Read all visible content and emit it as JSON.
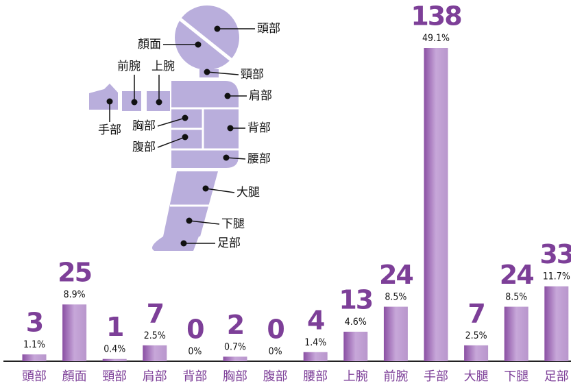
{
  "chart_data": {
    "type": "bar",
    "categories": [
      "頭部",
      "顏面",
      "頸部",
      "肩部",
      "背部",
      "胸部",
      "腹部",
      "腰部",
      "上腕",
      "前腕",
      "手部",
      "大腿",
      "下腿",
      "足部"
    ],
    "values": [
      3,
      25,
      1,
      7,
      0,
      2,
      0,
      4,
      13,
      24,
      138,
      7,
      24,
      33
    ],
    "percent_labels": [
      "1.1%",
      "8.9%",
      "0.4%",
      "2.5%",
      "0%",
      "0.7%",
      "0%",
      "1.4%",
      "4.6%",
      "8.5%",
      "49.1%",
      "2.5%",
      "8.5%",
      "11.7%"
    ],
    "color": "#9a5fb2",
    "diagram_labels": [
      "頭部",
      "顏面",
      "頸部",
      "前腕",
      "上腕",
      "肩部",
      "手部",
      "胸部",
      "背部",
      "腹部",
      "腰部",
      "大腿",
      "下腿",
      "足部"
    ]
  }
}
